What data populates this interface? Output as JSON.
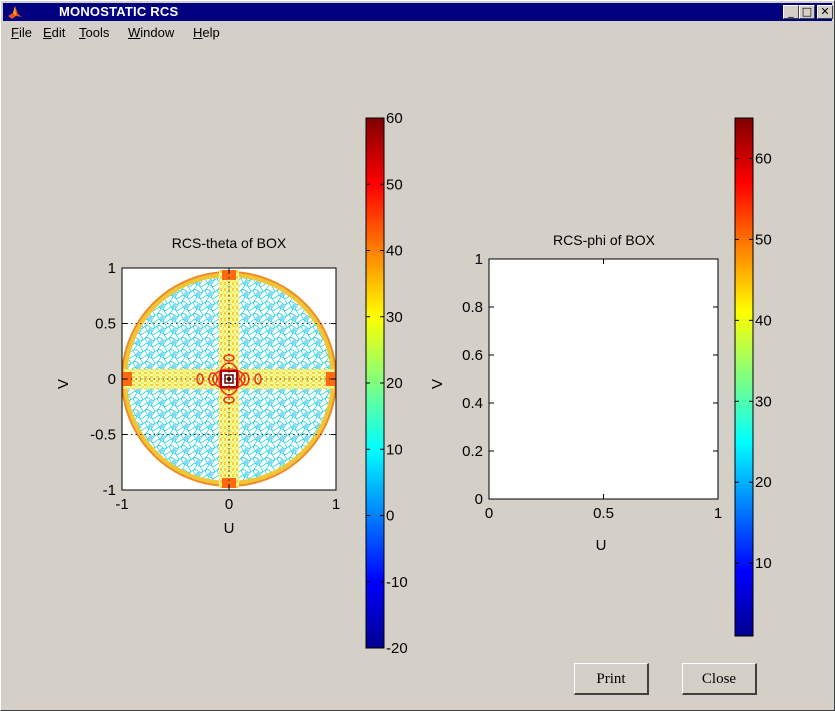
{
  "window": {
    "title": "MONOSTATIC RCS",
    "minimize_glyph": "_",
    "maximize_glyph": "□",
    "close_glyph": "✕"
  },
  "menu": [
    {
      "mnemonic": "F",
      "rest": "ile"
    },
    {
      "mnemonic": "E",
      "rest": "dit"
    },
    {
      "mnemonic": "T",
      "rest": "ools"
    },
    {
      "mnemonic": "W",
      "rest": "indow"
    },
    {
      "mnemonic": "H",
      "rest": "elp"
    }
  ],
  "buttons": {
    "print": "Print",
    "close": "Close"
  },
  "chart_data": [
    {
      "type": "heatmap",
      "title": "RCS-theta of BOX",
      "xlabel": "U",
      "ylabel": "V",
      "xlim": [
        -1,
        1
      ],
      "ylim": [
        -1,
        1
      ],
      "xticks": [
        -1,
        0,
        1
      ],
      "xtick_labels": [
        "-1",
        "0",
        "1"
      ],
      "yticks": [
        -1,
        -0.5,
        0,
        0.5,
        1
      ],
      "ytick_labels": [
        "-1",
        "-0.5",
        "0",
        "0.5",
        "1"
      ],
      "grid": true,
      "colorbar": {
        "range": [
          -20,
          60
        ],
        "ticks": [
          -20,
          -10,
          0,
          10,
          20,
          30,
          40,
          50,
          60
        ],
        "tick_labels": [
          "-20",
          "-10",
          "0",
          "10",
          "20",
          "30",
          "40",
          "50",
          "60"
        ]
      }
    },
    {
      "type": "heatmap",
      "title": "RCS-phi of BOX",
      "xlabel": "U",
      "ylabel": "V",
      "xlim": [
        0,
        1
      ],
      "ylim": [
        0,
        1
      ],
      "xticks": [
        0,
        0.5,
        1
      ],
      "xtick_labels": [
        "0",
        "0.5",
        "1"
      ],
      "yticks": [
        0,
        0.2,
        0.4,
        0.6,
        0.8,
        1
      ],
      "ytick_labels": [
        "0",
        "0.2",
        "0.4",
        "0.6",
        "0.8",
        "1"
      ],
      "grid": false,
      "colorbar": {
        "range": [
          1,
          65
        ],
        "ticks": [
          10,
          20,
          30,
          40,
          50,
          60
        ],
        "tick_labels": [
          "10",
          "20",
          "30",
          "40",
          "50",
          "60"
        ]
      }
    }
  ]
}
